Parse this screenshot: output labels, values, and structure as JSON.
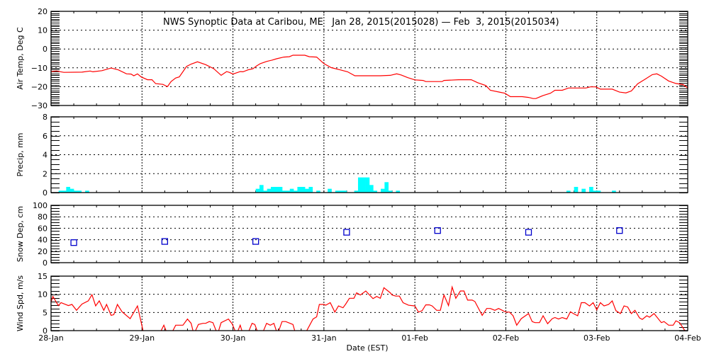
{
  "chart_data": {
    "type": "line",
    "title": "NWS Synoptic Data at Caribou, ME   Jan 28, 2015(2015028) — Feb  3, 2015(2015034)",
    "xlabel": "Date (EST)",
    "x_unit": "days since 28-Jan 00:00",
    "xlim": [
      0,
      7
    ],
    "x_tick_labels": [
      "28-Jan",
      "29-Jan",
      "30-Jan",
      "31-Jan",
      "01-Feb",
      "02-Feb",
      "03-Feb",
      "04-Feb"
    ],
    "grid": true,
    "panels": [
      {
        "id": "air-temp",
        "type": "line",
        "ylabel": "Air Temp, Deg C",
        "ylim": [
          -30,
          20
        ],
        "y_ticks": [
          20,
          10,
          0,
          -10,
          -20,
          -30
        ],
        "y_tick_labels": [
          "20",
          "10",
          "0",
          "−10",
          "−20",
          "−30"
        ],
        "color": "#ff0000",
        "x": [
          0.0,
          0.06,
          0.14,
          0.34,
          0.43,
          0.46,
          0.56,
          0.66,
          0.74,
          0.83,
          0.88,
          0.91,
          0.95,
          0.99,
          1.06,
          1.11,
          1.15,
          1.23,
          1.28,
          1.32,
          1.37,
          1.41,
          1.49,
          1.54,
          1.61,
          1.7,
          1.79,
          1.87,
          1.93,
          1.96,
          2.0,
          2.08,
          2.11,
          2.17,
          2.22,
          2.26,
          2.3,
          2.37,
          2.43,
          2.48,
          2.56,
          2.62,
          2.66,
          2.79,
          2.84,
          2.92,
          3.0,
          3.08,
          3.18,
          3.26,
          3.34,
          3.47,
          3.62,
          3.73,
          3.8,
          3.85,
          3.92,
          4.0,
          4.09,
          4.12,
          4.3,
          4.32,
          4.48,
          4.62,
          4.69,
          4.78,
          4.83,
          4.93,
          4.99,
          5.05,
          5.18,
          5.25,
          5.3,
          5.33,
          5.41,
          5.49,
          5.54,
          5.62,
          5.69,
          5.88,
          5.93,
          5.99,
          6.04,
          6.17,
          6.25,
          6.32,
          6.38,
          6.45,
          6.53,
          6.61,
          6.66,
          6.71,
          6.79,
          6.87,
          6.95,
          7.0
        ],
        "y": [
          -12.0,
          -11.7,
          -12.4,
          -12.3,
          -11.7,
          -12.1,
          -11.5,
          -10.1,
          -11.1,
          -13.2,
          -13.3,
          -14.2,
          -13.2,
          -14.8,
          -16.3,
          -16.3,
          -18.4,
          -18.8,
          -20.0,
          -17.3,
          -15.4,
          -14.8,
          -9.3,
          -8.0,
          -6.8,
          -8.3,
          -10.5,
          -14.0,
          -12.0,
          -12.4,
          -13.3,
          -12.0,
          -12.1,
          -11.0,
          -10.5,
          -9.0,
          -7.8,
          -6.6,
          -5.9,
          -5.2,
          -4.3,
          -4.1,
          -3.3,
          -3.3,
          -4.1,
          -4.3,
          -7.8,
          -9.9,
          -11.1,
          -12.1,
          -14.2,
          -14.2,
          -14.2,
          -14.0,
          -13.2,
          -13.8,
          -15.2,
          -16.4,
          -16.7,
          -17.3,
          -17.3,
          -16.7,
          -16.3,
          -16.3,
          -17.9,
          -19.4,
          -21.9,
          -22.9,
          -23.5,
          -25.3,
          -25.3,
          -25.7,
          -26.3,
          -26.3,
          -24.7,
          -23.5,
          -21.9,
          -21.9,
          -20.7,
          -20.7,
          -20.1,
          -20.1,
          -21.3,
          -21.3,
          -22.9,
          -23.3,
          -22.3,
          -18.5,
          -16.1,
          -13.6,
          -13.2,
          -14.4,
          -17.0,
          -18.3,
          -18.9,
          -20.7
        ]
      },
      {
        "id": "precip",
        "type": "bar",
        "ylabel": "Precip, mm",
        "ylim": [
          0,
          8
        ],
        "y_ticks": [
          8,
          6,
          4,
          2,
          0
        ],
        "y_tick_labels": [
          "8",
          "6",
          "4",
          "2",
          "0"
        ],
        "color": "#00ffff",
        "bar_hours": [
          2,
          3,
          4,
          5,
          6,
          7,
          9,
          54,
          55,
          56,
          57,
          58,
          59,
          60,
          61,
          62,
          63,
          64,
          65,
          66,
          67,
          68,
          70,
          73,
          75,
          76,
          77,
          80,
          81,
          82,
          83,
          84,
          85,
          87,
          88,
          89,
          91,
          136,
          138,
          140,
          142,
          143,
          144,
          148
        ],
        "values": [
          0.2,
          0.2,
          0.6,
          0.4,
          0.2,
          0.2,
          0.2,
          0.4,
          0.8,
          0.2,
          0.4,
          0.6,
          0.6,
          0.6,
          0.2,
          0.2,
          0.4,
          0.2,
          0.6,
          0.6,
          0.4,
          0.6,
          0.2,
          0.4,
          0.2,
          0.2,
          0.2,
          0.2,
          1.6,
          1.6,
          1.6,
          0.8,
          0.2,
          0.4,
          1.1,
          0.2,
          0.2,
          0.2,
          0.6,
          0.4,
          0.6,
          0.2,
          0.2,
          0.2
        ]
      },
      {
        "id": "snow-depth",
        "type": "scatter",
        "ylabel": "Snow Dep, cm",
        "ylim": [
          0,
          100
        ],
        "y_ticks": [
          100,
          80,
          60,
          40,
          20,
          0
        ],
        "y_tick_labels": [
          "100",
          "80",
          "60",
          "40",
          "20",
          "0"
        ],
        "color": "#0000cc",
        "x": [
          0.25,
          1.25,
          2.25,
          3.25,
          4.25,
          5.25,
          6.25
        ],
        "y": [
          35,
          37,
          37,
          53,
          56,
          53,
          56
        ]
      },
      {
        "id": "wind-speed",
        "type": "line",
        "ylabel": "Wind Spd, m/s",
        "ylim": [
          0,
          15
        ],
        "y_ticks": [
          15,
          10,
          5,
          0
        ],
        "y_tick_labels": [
          "15",
          "10",
          "5",
          "0"
        ],
        "color": "#ff0000",
        "x": [
          0.0,
          0.02,
          0.08,
          0.11,
          0.19,
          0.23,
          0.28,
          0.34,
          0.41,
          0.45,
          0.49,
          0.53,
          0.58,
          0.61,
          0.66,
          0.69,
          0.73,
          0.78,
          0.87,
          0.95,
          1.02,
          1.19,
          1.24,
          1.28,
          1.32,
          1.37,
          1.45,
          1.5,
          1.54,
          1.57,
          1.62,
          1.67,
          1.7,
          1.74,
          1.78,
          1.83,
          1.87,
          1.95,
          1.99,
          2.04,
          2.08,
          2.11,
          2.16,
          2.21,
          2.24,
          2.28,
          2.32,
          2.37,
          2.41,
          2.45,
          2.49,
          2.54,
          2.58,
          2.66,
          2.69,
          2.79,
          2.88,
          2.92,
          2.95,
          3.0,
          3.02,
          3.07,
          3.12,
          3.16,
          3.21,
          3.24,
          3.28,
          3.33,
          3.36,
          3.4,
          3.46,
          3.54,
          3.58,
          3.62,
          3.66,
          3.73,
          3.75,
          3.79,
          3.83,
          3.87,
          3.93,
          4.0,
          4.04,
          4.08,
          4.12,
          4.16,
          4.19,
          4.24,
          4.28,
          4.32,
          4.37,
          4.41,
          4.45,
          4.5,
          4.54,
          4.58,
          4.63,
          4.66,
          4.74,
          4.79,
          4.83,
          4.88,
          4.92,
          5.0,
          5.04,
          5.08,
          5.12,
          5.17,
          5.25,
          5.29,
          5.32,
          5.37,
          5.41,
          5.46,
          5.51,
          5.54,
          5.58,
          5.62,
          5.67,
          5.71,
          5.75,
          5.79,
          5.83,
          5.87,
          5.92,
          5.96,
          6.0,
          6.04,
          6.08,
          6.13,
          6.17,
          6.21,
          6.26,
          6.3,
          6.34,
          6.38,
          6.42,
          6.47,
          6.5,
          6.55,
          6.58,
          6.63,
          6.71,
          6.74,
          6.79,
          6.84,
          6.87,
          6.91,
          6.96,
          7.0
        ],
        "y": [
          7.8,
          9.4,
          6.9,
          7.7,
          6.9,
          7.2,
          5.6,
          7.3,
          8.2,
          9.9,
          6.8,
          8.2,
          5.6,
          7.2,
          4.2,
          4.4,
          7.2,
          5.2,
          3.3,
          6.8,
          -1,
          -1,
          1.5,
          -1,
          -1,
          1.5,
          1.5,
          3.2,
          2.0,
          -1,
          1.7,
          2.0,
          2.0,
          2.5,
          2.2,
          -1,
          2.2,
          3.2,
          1.9,
          -1,
          1.5,
          -1,
          -1,
          2.0,
          1.7,
          -1,
          -1,
          2.0,
          1.5,
          2.0,
          -1,
          2.5,
          2.5,
          1.7,
          -1,
          -1,
          3.2,
          3.8,
          7.2,
          7.2,
          7.0,
          7.7,
          5.1,
          6.8,
          6.3,
          7.3,
          8.9,
          8.9,
          10.4,
          9.8,
          10.9,
          8.8,
          9.4,
          8.9,
          11.8,
          10.4,
          9.8,
          9.5,
          9.5,
          7.7,
          7.0,
          6.8,
          5.1,
          5.5,
          7.1,
          7.1,
          6.8,
          5.6,
          5.6,
          9.8,
          6.9,
          12.0,
          8.9,
          10.9,
          10.9,
          8.4,
          8.4,
          8.0,
          4.2,
          6.1,
          6.1,
          5.6,
          6.1,
          5.1,
          5.1,
          4.1,
          1.5,
          3.3,
          4.7,
          2.5,
          2.2,
          2.2,
          4.1,
          1.9,
          3.3,
          3.6,
          3.2,
          3.6,
          3.2,
          5.2,
          4.6,
          4.1,
          7.7,
          7.7,
          6.8,
          7.7,
          5.7,
          7.7,
          6.8,
          7.2,
          8.2,
          5.5,
          4.7,
          6.8,
          6.5,
          4.7,
          5.6,
          3.5,
          3.1,
          4.1,
          3.7,
          4.7,
          2.2,
          2.5,
          1.5,
          1.5,
          2.7,
          2.2,
          0.3,
          -1
        ]
      }
    ]
  }
}
